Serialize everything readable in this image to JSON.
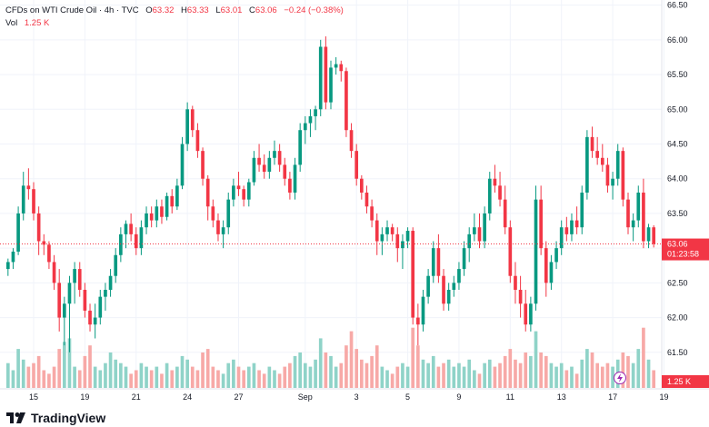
{
  "header": {
    "symbol_line": "CFDs on WTI Crude Oil · 4h · TVC",
    "open_label": "O",
    "open_value": "63.32",
    "high_label": "H",
    "high_value": "63.33",
    "low_label": "L",
    "low_value": "63.01",
    "close_label": "C",
    "close_value": "63.06",
    "change_value": "−0.24 (−0.38%)",
    "vol_label": "Vol",
    "vol_value": "1.25 K"
  },
  "price_tag": {
    "price": "63.06",
    "countdown": "01:23:58"
  },
  "volume_tag": "1.25 K",
  "brand": "TradingView",
  "colors": {
    "up": "#089981",
    "down": "#f23645",
    "vol_up": "#8fd3c8",
    "vol_down": "#f7a9a7",
    "axis_text": "#131722",
    "grid": "#f0f3fa",
    "accent": "#9c27b0"
  },
  "chart_data": {
    "type": "candlestick",
    "y_ticks": [
      "66.50",
      "66.00",
      "65.50",
      "65.00",
      "64.50",
      "64.00",
      "63.50",
      "63.00",
      "62.50",
      "62.00",
      "61.50"
    ],
    "ylim": [
      61.0,
      66.6
    ],
    "x_tick_labels": [
      {
        "label": "15",
        "index": 5
      },
      {
        "label": "19",
        "index": 15
      },
      {
        "label": "21",
        "index": 25
      },
      {
        "label": "24",
        "index": 35
      },
      {
        "label": "27",
        "index": 45
      },
      {
        "label": "Sep",
        "index": 58
      },
      {
        "label": "3",
        "index": 68
      },
      {
        "label": "5",
        "index": 78
      },
      {
        "label": "9",
        "index": 88
      },
      {
        "label": "11",
        "index": 98
      },
      {
        "label": "13",
        "index": 108
      },
      {
        "label": "17",
        "index": 118
      },
      {
        "label": "19",
        "index": 128
      }
    ],
    "candles": [
      [
        62.7,
        62.85,
        62.6,
        62.8,
        0.35
      ],
      [
        62.8,
        63.0,
        62.7,
        62.95,
        0.25
      ],
      [
        62.95,
        63.6,
        62.9,
        63.5,
        0.55
      ],
      [
        63.5,
        64.1,
        63.4,
        63.9,
        0.4
      ],
      [
        63.9,
        64.15,
        63.7,
        63.85,
        0.3
      ],
      [
        63.85,
        63.95,
        63.4,
        63.5,
        0.35
      ],
      [
        63.5,
        63.6,
        62.9,
        63.1,
        0.45
      ],
      [
        63.1,
        63.2,
        62.9,
        63.05,
        0.25
      ],
      [
        63.05,
        63.1,
        62.7,
        62.8,
        0.2
      ],
      [
        62.8,
        62.9,
        62.4,
        62.5,
        0.3
      ],
      [
        62.5,
        62.7,
        61.8,
        62.0,
        0.55
      ],
      [
        62.0,
        62.3,
        61.6,
        62.2,
        0.65
      ],
      [
        62.2,
        62.6,
        61.5,
        62.5,
        0.7
      ],
      [
        62.5,
        62.8,
        62.2,
        62.7,
        0.3
      ],
      [
        62.7,
        62.8,
        62.3,
        62.4,
        0.25
      ],
      [
        62.4,
        62.5,
        62.0,
        62.1,
        0.45
      ],
      [
        62.1,
        62.2,
        61.8,
        61.9,
        0.6
      ],
      [
        61.9,
        62.2,
        61.7,
        62.0,
        0.3
      ],
      [
        62.0,
        62.4,
        61.9,
        62.3,
        0.25
      ],
      [
        62.3,
        62.5,
        62.1,
        62.4,
        0.35
      ],
      [
        62.4,
        62.7,
        62.3,
        62.6,
        0.5
      ],
      [
        62.6,
        63.0,
        62.5,
        62.9,
        0.4
      ],
      [
        62.9,
        63.3,
        62.8,
        63.2,
        0.35
      ],
      [
        63.2,
        63.4,
        63.0,
        63.35,
        0.3
      ],
      [
        63.35,
        63.5,
        63.1,
        63.2,
        0.2
      ],
      [
        63.2,
        63.3,
        62.9,
        63.0,
        0.25
      ],
      [
        63.0,
        63.4,
        62.9,
        63.3,
        0.35
      ],
      [
        63.3,
        63.6,
        63.2,
        63.5,
        0.3
      ],
      [
        63.5,
        63.6,
        63.3,
        63.4,
        0.25
      ],
      [
        63.4,
        63.7,
        63.3,
        63.6,
        0.3
      ],
      [
        63.6,
        63.7,
        63.35,
        63.45,
        0.2
      ],
      [
        63.45,
        63.8,
        63.4,
        63.75,
        0.35
      ],
      [
        63.75,
        63.85,
        63.5,
        63.6,
        0.25
      ],
      [
        63.6,
        64.0,
        63.55,
        63.9,
        0.3
      ],
      [
        63.9,
        64.6,
        63.85,
        64.5,
        0.45
      ],
      [
        64.5,
        65.1,
        64.4,
        65.0,
        0.4
      ],
      [
        65.0,
        65.05,
        64.6,
        64.7,
        0.3
      ],
      [
        64.7,
        64.8,
        64.3,
        64.4,
        0.25
      ],
      [
        64.4,
        64.45,
        63.9,
        64.0,
        0.5
      ],
      [
        64.0,
        64.05,
        63.4,
        63.6,
        0.55
      ],
      [
        63.6,
        63.7,
        63.3,
        63.4,
        0.3
      ],
      [
        63.4,
        63.5,
        63.1,
        63.2,
        0.25
      ],
      [
        63.2,
        63.4,
        63.0,
        63.3,
        0.2
      ],
      [
        63.3,
        63.8,
        63.2,
        63.7,
        0.35
      ],
      [
        63.7,
        64.0,
        63.6,
        63.9,
        0.4
      ],
      [
        63.9,
        64.1,
        63.75,
        63.85,
        0.3
      ],
      [
        63.85,
        63.9,
        63.6,
        63.7,
        0.25
      ],
      [
        63.7,
        64.0,
        63.6,
        63.95,
        0.3
      ],
      [
        63.95,
        64.4,
        63.9,
        64.3,
        0.35
      ],
      [
        64.3,
        64.5,
        64.1,
        64.2,
        0.25
      ],
      [
        64.2,
        64.35,
        64.0,
        64.1,
        0.2
      ],
      [
        64.1,
        64.4,
        64.0,
        64.3,
        0.3
      ],
      [
        64.3,
        64.55,
        64.2,
        64.4,
        0.25
      ],
      [
        64.4,
        64.5,
        64.1,
        64.2,
        0.2
      ],
      [
        64.2,
        64.3,
        63.9,
        64.0,
        0.3
      ],
      [
        64.0,
        64.1,
        63.7,
        63.8,
        0.35
      ],
      [
        63.8,
        64.3,
        63.7,
        64.2,
        0.45
      ],
      [
        64.2,
        64.8,
        64.1,
        64.7,
        0.5
      ],
      [
        64.7,
        64.9,
        64.5,
        64.8,
        0.35
      ],
      [
        64.8,
        65.0,
        64.6,
        64.9,
        0.3
      ],
      [
        64.9,
        65.05,
        64.7,
        65.0,
        0.4
      ],
      [
        65.0,
        66.0,
        64.9,
        65.9,
        0.7
      ],
      [
        65.9,
        66.05,
        65.0,
        65.1,
        0.5
      ],
      [
        65.1,
        65.7,
        65.0,
        65.6,
        0.45
      ],
      [
        65.6,
        65.75,
        65.5,
        65.65,
        0.3
      ],
      [
        65.65,
        65.7,
        65.4,
        65.55,
        0.35
      ],
      [
        65.55,
        65.6,
        64.6,
        64.7,
        0.6
      ],
      [
        64.7,
        64.8,
        64.3,
        64.4,
        0.8
      ],
      [
        64.4,
        64.5,
        63.9,
        64.0,
        0.55
      ],
      [
        64.0,
        64.05,
        63.7,
        63.8,
        0.4
      ],
      [
        63.8,
        63.9,
        63.5,
        63.6,
        0.35
      ],
      [
        63.6,
        63.7,
        63.3,
        63.4,
        0.45
      ],
      [
        63.4,
        63.5,
        62.9,
        63.1,
        0.6
      ],
      [
        63.1,
        63.3,
        62.9,
        63.2,
        0.3
      ],
      [
        63.2,
        63.4,
        63.1,
        63.3,
        0.25
      ],
      [
        63.3,
        63.35,
        63.1,
        63.2,
        0.2
      ],
      [
        63.2,
        63.3,
        62.8,
        63.0,
        0.3
      ],
      [
        63.0,
        63.2,
        62.7,
        63.1,
        0.35
      ],
      [
        63.1,
        63.3,
        63.0,
        63.25,
        0.3
      ],
      [
        63.25,
        63.3,
        61.9,
        62.0,
        0.85
      ],
      [
        62.0,
        62.2,
        61.6,
        61.9,
        0.6
      ],
      [
        61.9,
        62.4,
        61.8,
        62.3,
        0.4
      ],
      [
        62.3,
        62.7,
        62.2,
        62.6,
        0.35
      ],
      [
        62.6,
        63.1,
        62.5,
        63.0,
        0.45
      ],
      [
        63.0,
        63.2,
        62.5,
        62.6,
        0.3
      ],
      [
        62.6,
        62.7,
        62.1,
        62.2,
        0.35
      ],
      [
        62.2,
        62.5,
        62.1,
        62.4,
        0.4
      ],
      [
        62.4,
        62.6,
        62.3,
        62.5,
        0.3
      ],
      [
        62.5,
        62.8,
        62.4,
        62.7,
        0.35
      ],
      [
        62.7,
        63.1,
        62.6,
        63.0,
        0.3
      ],
      [
        63.0,
        63.3,
        62.8,
        63.2,
        0.4
      ],
      [
        63.2,
        63.5,
        63.1,
        63.3,
        0.25
      ],
      [
        63.3,
        63.5,
        63.0,
        63.1,
        0.2
      ],
      [
        63.1,
        63.6,
        63.0,
        63.5,
        0.35
      ],
      [
        63.5,
        64.1,
        63.4,
        64.0,
        0.4
      ],
      [
        64.0,
        64.2,
        63.8,
        63.9,
        0.3
      ],
      [
        63.9,
        64.1,
        63.6,
        63.7,
        0.35
      ],
      [
        63.7,
        63.9,
        63.2,
        63.3,
        0.45
      ],
      [
        63.3,
        63.4,
        62.5,
        62.6,
        0.55
      ],
      [
        62.6,
        62.8,
        62.2,
        62.4,
        0.4
      ],
      [
        62.4,
        62.6,
        62.0,
        62.2,
        0.35
      ],
      [
        62.2,
        62.4,
        61.8,
        61.9,
        0.5
      ],
      [
        61.9,
        62.3,
        61.8,
        62.2,
        0.45
      ],
      [
        62.2,
        63.9,
        62.1,
        63.7,
        0.8
      ],
      [
        63.7,
        63.9,
        62.9,
        63.0,
        0.5
      ],
      [
        63.0,
        63.1,
        62.3,
        62.5,
        0.45
      ],
      [
        62.5,
        62.9,
        62.4,
        62.8,
        0.35
      ],
      [
        62.8,
        63.1,
        62.7,
        63.0,
        0.3
      ],
      [
        63.0,
        63.4,
        62.9,
        63.3,
        0.35
      ],
      [
        63.3,
        63.45,
        63.1,
        63.2,
        0.25
      ],
      [
        63.2,
        63.5,
        63.1,
        63.4,
        0.3
      ],
      [
        63.4,
        63.6,
        63.2,
        63.3,
        0.2
      ],
      [
        63.3,
        63.9,
        63.2,
        63.8,
        0.4
      ],
      [
        63.8,
        64.7,
        63.7,
        64.6,
        0.55
      ],
      [
        64.6,
        64.75,
        64.3,
        64.4,
        0.5
      ],
      [
        64.4,
        64.6,
        64.2,
        64.3,
        0.35
      ],
      [
        64.3,
        64.5,
        64.1,
        64.2,
        0.3
      ],
      [
        64.2,
        64.3,
        63.8,
        63.9,
        0.35
      ],
      [
        63.9,
        64.1,
        63.7,
        64.0,
        0.3
      ],
      [
        64.0,
        64.5,
        63.9,
        64.4,
        0.4
      ],
      [
        64.4,
        64.45,
        63.6,
        63.7,
        0.5
      ],
      [
        63.7,
        63.8,
        63.2,
        63.3,
        0.45
      ],
      [
        63.3,
        63.5,
        63.1,
        63.4,
        0.35
      ],
      [
        63.4,
        63.9,
        63.3,
        63.8,
        0.55
      ],
      [
        63.8,
        64.0,
        63.0,
        63.1,
        0.85
      ],
      [
        63.1,
        63.35,
        63.0,
        63.3,
        0.4
      ],
      [
        63.3,
        63.33,
        63.01,
        63.06,
        0.25
      ]
    ]
  }
}
